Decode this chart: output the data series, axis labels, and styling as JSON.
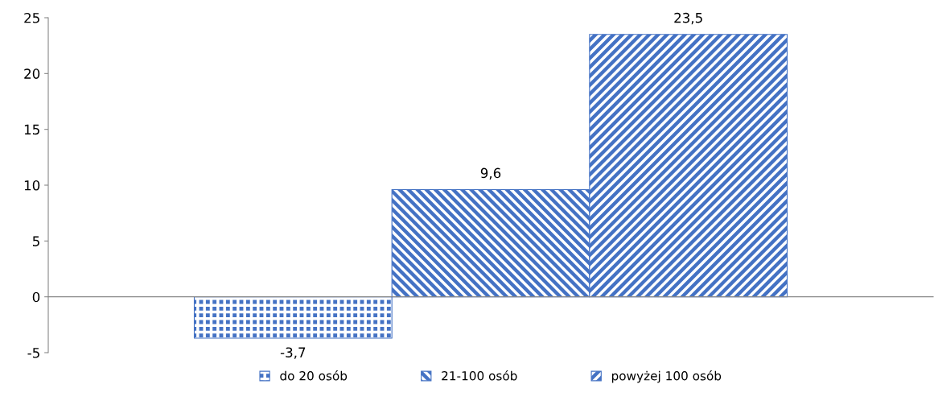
{
  "chart_data": {
    "type": "bar",
    "categories": [
      null
    ],
    "series": [
      {
        "name": "do 20 osób",
        "color": "#4472c4",
        "values": [
          -3.7
        ],
        "value_labels": [
          "-3,7"
        ]
      },
      {
        "name": "21-100 osób",
        "color": "#4472c4",
        "values": [
          9.6
        ],
        "value_labels": [
          "9,6"
        ]
      },
      {
        "name": "powyżej 100 osób",
        "color": "#4472c4",
        "values": [
          23.5
        ],
        "value_labels": [
          "23,5"
        ]
      }
    ],
    "ylim": [
      -5,
      25
    ],
    "yticks": [
      -5,
      0,
      5,
      10,
      15,
      20,
      25
    ],
    "legend": "bottom",
    "tick_labels": "y"
  }
}
